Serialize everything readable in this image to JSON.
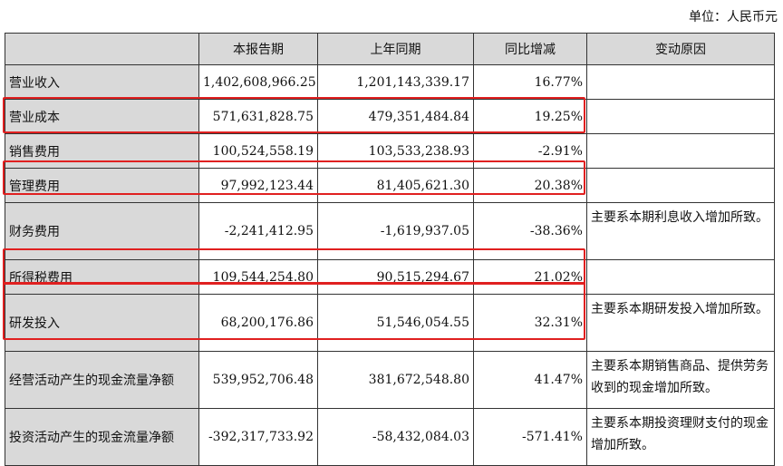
{
  "unit_label": "单位：人民币元",
  "headers": [
    "",
    "本报告期",
    "上年同期",
    "同比增减",
    "变动原因"
  ],
  "rows": [
    {
      "item": "营业收入",
      "current": "1,402,608,966.25",
      "prior": "1,201,143,339.17",
      "change": "16.77%",
      "reason": ""
    },
    {
      "item": "营业成本",
      "current": "571,631,828.75",
      "prior": "479,351,484.84",
      "change": "19.25%",
      "reason": ""
    },
    {
      "item": "销售费用",
      "current": "100,524,558.19",
      "prior": "103,533,238.93",
      "change": "-2.91%",
      "reason": ""
    },
    {
      "item": "管理费用",
      "current": "97,992,123.44",
      "prior": "81,405,621.30",
      "change": "20.38%",
      "reason": ""
    },
    {
      "item": "财务费用",
      "current": "-2,241,412.95",
      "prior": "-1,619,937.05",
      "change": "-38.36%",
      "reason": "主要系本期利息收入增加所致。"
    },
    {
      "item": "所得税费用",
      "current": "109,544,254.80",
      "prior": "90,515,294.67",
      "change": "21.02%",
      "reason": ""
    },
    {
      "item": "研发投入",
      "current": "68,200,176.86",
      "prior": "51,546,054.55",
      "change": "32.31%",
      "reason": "主要系本期研发投入增加所致。"
    },
    {
      "item": "经营活动产生的现金流量净额",
      "current": "539,952,706.48",
      "prior": "381,672,548.80",
      "change": "41.47%",
      "reason": "主要系本期销售商品、提供劳务收到的现金增加所致。"
    },
    {
      "item": "投资活动产生的现金流量净额",
      "current": "-392,317,733.92",
      "prior": "-58,432,084.03",
      "change": "-571.41%",
      "reason": "主要系本期投资理财支付的现金增加所致。"
    }
  ],
  "highlight_color": "#e02020"
}
